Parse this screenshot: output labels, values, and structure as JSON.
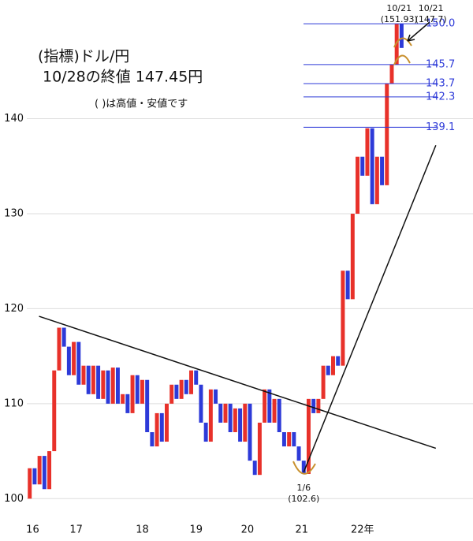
{
  "chart_data": {
    "type": "line_break",
    "title": "(指標)ドル/円",
    "subtitle": "10/28の終値 147.45円",
    "note": "( )は高値・安値です",
    "up_color": "#e8312a",
    "down_color": "#2d3ad8",
    "grid": true,
    "xlim": [
      -0.6,
      90.6
    ],
    "ylim": [
      97.7,
      152.5
    ],
    "yticks": [
      100,
      110,
      120,
      130,
      140
    ],
    "xticks": [
      {
        "value": 0.6,
        "label": "16"
      },
      {
        "value": 9.5,
        "label": "17"
      },
      {
        "value": 23,
        "label": "18"
      },
      {
        "value": 34,
        "label": "19"
      },
      {
        "value": 44.5,
        "label": "20"
      },
      {
        "value": 55.6,
        "label": "21"
      },
      {
        "value": 68,
        "label": "22年"
      }
    ],
    "open": [
      100,
      103.2,
      101.5,
      104.5,
      101,
      105,
      113.5,
      118,
      116,
      113,
      116.5,
      112,
      114,
      111,
      114,
      110.5,
      113.5,
      110,
      113.8,
      110,
      111,
      109,
      113,
      110,
      112.5,
      107,
      105.5,
      109,
      106,
      110,
      112,
      110.5,
      112.5,
      111,
      113.5,
      112,
      108,
      106,
      111.5,
      110,
      108,
      110,
      107,
      109.5,
      106,
      110,
      104,
      102.5,
      108,
      111.5,
      108,
      110.5,
      107,
      105.5,
      107,
      105.5,
      104,
      102.6,
      110.5,
      109,
      110.5,
      114,
      113,
      115,
      114,
      124,
      121,
      130,
      136,
      134,
      139,
      131,
      136,
      133,
      143.7,
      145.7,
      150
    ],
    "close": [
      103.2,
      101.5,
      104.5,
      101,
      105,
      113.5,
      118,
      116,
      113,
      116.5,
      112,
      114,
      111,
      114,
      110.5,
      113.5,
      110,
      113.8,
      110,
      111,
      109,
      113,
      110,
      112.5,
      107,
      105.5,
      109,
      106,
      110,
      112,
      110.5,
      112.5,
      111,
      113.5,
      112,
      108,
      106,
      111.5,
      110,
      108,
      110,
      107,
      109.5,
      106,
      110,
      104,
      102.5,
      108,
      111.5,
      108,
      110.5,
      107,
      105.5,
      107,
      105.5,
      104,
      102.6,
      110.5,
      109,
      110.5,
      114,
      113,
      115,
      114,
      124,
      121,
      130,
      136,
      134,
      139,
      131,
      136,
      133,
      143.7,
      145.7,
      150,
      147.45
    ],
    "levels": [
      {
        "value": 150,
        "label": "150.0"
      },
      {
        "value": 145.7,
        "label": "145.7"
      },
      {
        "value": 143.7,
        "label": "143.7"
      },
      {
        "value": 142.3,
        "label": "142.3"
      },
      {
        "value": 139.1,
        "label": "139.1"
      }
    ],
    "trendlines": [
      {
        "x": [
          1.9,
          83
        ],
        "y": [
          119.2,
          105.3
        ]
      },
      {
        "x": [
          56,
          83
        ],
        "y": [
          102.8,
          137.2
        ]
      }
    ],
    "annotations": [
      {
        "x": 75.5,
        "y": 151.93,
        "lines": [
          "10/21",
          "(151.93)"
        ]
      },
      {
        "x": 82,
        "y": 147.7,
        "lines": [
          "10/21",
          "(147.7)"
        ]
      },
      {
        "x": 56,
        "y": 102.6,
        "lines": [
          "1/6",
          "(102.6)"
        ]
      }
    ]
  }
}
